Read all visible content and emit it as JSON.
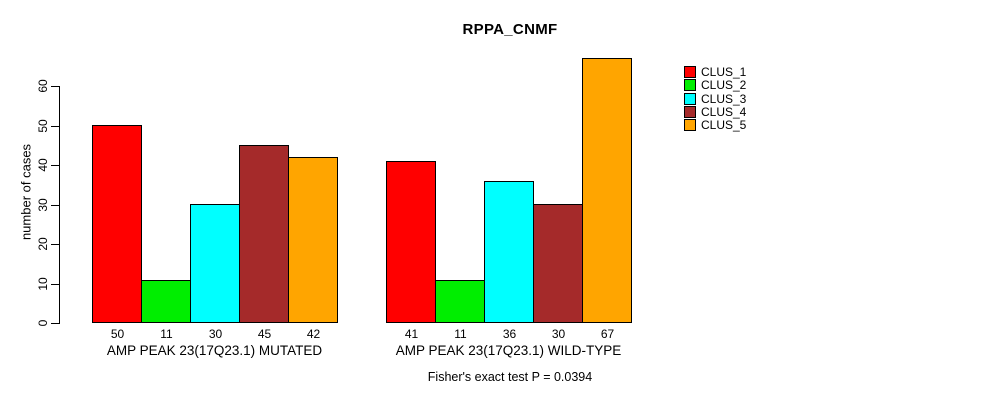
{
  "chart_data": {
    "type": "bar",
    "title": "RPPA_CNMF",
    "ylabel": "number of cases",
    "xlabel": "",
    "ylim": [
      0,
      67
    ],
    "yticks": [
      0,
      10,
      20,
      30,
      40,
      50,
      60
    ],
    "grid": false,
    "legend_position": "right",
    "categories": [
      "AMP PEAK 23(17Q23.1) MUTATED",
      "AMP PEAK 23(17Q23.1) WILD-TYPE"
    ],
    "series": [
      {
        "name": "CLUS_1",
        "color": "#FF0000",
        "values": [
          50,
          41
        ]
      },
      {
        "name": "CLUS_2",
        "color": "#00EE00",
        "values": [
          11,
          11
        ]
      },
      {
        "name": "CLUS_3",
        "color": "#00FFFF",
        "values": [
          30,
          36
        ]
      },
      {
        "name": "CLUS_4",
        "color": "#A52A2A",
        "values": [
          45,
          30
        ]
      },
      {
        "name": "CLUS_5",
        "color": "#FFA500",
        "values": [
          42,
          67
        ]
      }
    ],
    "annotation": "Fisher's exact test P = 0.0394"
  }
}
